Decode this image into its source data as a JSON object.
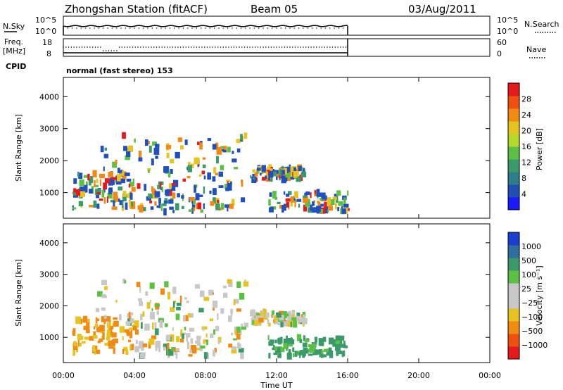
{
  "header": {
    "station": "Zhongshan Station (fitACF)",
    "beam": "Beam 05",
    "date": "03/Aug/2011"
  },
  "top_panels": {
    "nsky_label": "N.Sky",
    "nsky_ticks": [
      "10^5",
      "10^0"
    ],
    "nsearch_label": "N.Search",
    "freq_label": "Freq.",
    "freq_unit": "[MHz]",
    "freq_ticks": [
      "18",
      "8"
    ],
    "nave_ticks": [
      "60",
      "0"
    ],
    "nave_label": "Nave",
    "cpid_label": "CPID",
    "cpid_text": "normal (fast stereo) 153"
  },
  "chart_data": [
    {
      "type": "heatmap",
      "name": "power",
      "ylabel": "Slant Range [km]",
      "ylim": [
        200,
        4600
      ],
      "yticks": [
        "1000",
        "2000",
        "3000",
        "4000"
      ],
      "xlim_hours": [
        0,
        24
      ],
      "colorbar_label": "Power [dB]",
      "colorbar_ticks": [
        "28",
        "24",
        "20",
        "16",
        "12",
        "8",
        "4"
      ],
      "colorbar_colors": [
        "#1a1aff",
        "#1f4fb0",
        "#2e7d8a",
        "#3b9a6a",
        "#5cc142",
        "#b4d92a",
        "#e6c31f",
        "#f08a12",
        "#ee5010",
        "#e61a1a"
      ],
      "echo_regions_hours_km": [
        {
          "t": [
            0.5,
            4.0
          ],
          "r": [
            500,
            1600
          ]
        },
        {
          "t": [
            1.8,
            10.2
          ],
          "r": [
            1300,
            2800
          ]
        },
        {
          "t": [
            4.0,
            10.0
          ],
          "r": [
            400,
            1300
          ]
        },
        {
          "t": [
            10.5,
            13.5
          ],
          "r": [
            1400,
            1800
          ]
        },
        {
          "t": [
            11.5,
            16.0
          ],
          "r": [
            400,
            1000
          ]
        }
      ]
    },
    {
      "type": "heatmap",
      "name": "velocity",
      "ylabel": "Slant Range [km]",
      "ylim": [
        200,
        4600
      ],
      "yticks": [
        "1000",
        "2000",
        "3000",
        "4000"
      ],
      "xlim_hours": [
        0,
        24
      ],
      "xticks": [
        "00:00",
        "04:00",
        "08:00",
        "12:00",
        "16:00",
        "20:00",
        "00:00"
      ],
      "xlabel": "Time UT",
      "colorbar_label": "Velocity [m s⁻¹]",
      "colorbar_ticks": [
        "1000",
        "500",
        "100",
        "25",
        "−25",
        "−100",
        "−500",
        "−1000"
      ],
      "colorbar_colors": [
        "#e61a1a",
        "#ee5010",
        "#f08a12",
        "#e6c31f",
        "#c8c8c8",
        "#c8c8c8",
        "#5cc142",
        "#3b9a6a",
        "#2f6e9e",
        "#1a3fd0"
      ]
    }
  ],
  "colors": {
    "blue": "#2050c0",
    "green": "#3b9a6a",
    "lightgreen": "#5cc142",
    "yellow": "#e6c31f",
    "orange": "#f08a12",
    "red": "#e61a1a",
    "gray": "#c8c8c8"
  }
}
